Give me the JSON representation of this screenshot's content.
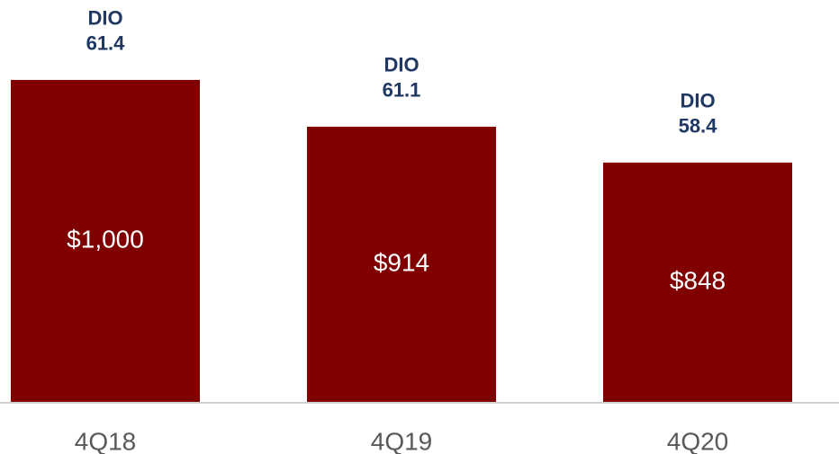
{
  "chart_data": {
    "type": "bar",
    "categories": [
      "4Q18",
      "4Q19",
      "4Q20"
    ],
    "values": [
      1000,
      914,
      848
    ],
    "value_labels": [
      "$1,000",
      "$914",
      "$848"
    ],
    "annotations": [
      {
        "text": "DIO",
        "value": 61.4
      },
      {
        "text": "DIO",
        "value": 61.1
      },
      {
        "text": "DIO",
        "value": 58.4
      }
    ],
    "color": "#800000",
    "ylim": [
      408,
      1147
    ],
    "grid": false
  }
}
